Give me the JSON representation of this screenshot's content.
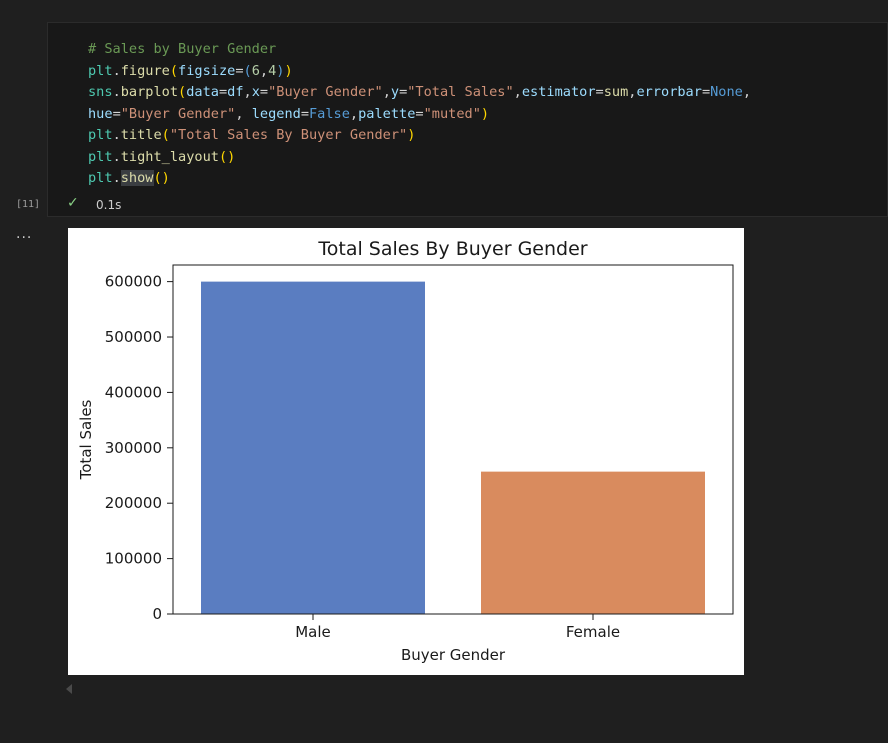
{
  "cell": {
    "execution_count": "[11]",
    "status_icon": "check-icon",
    "status_glyph": "✓",
    "duration": "0.1s",
    "more_glyph": "...",
    "code_lines": [
      [
        {
          "c": "comment",
          "t": "# Sales by Buyer Gender"
        }
      ],
      [
        {
          "c": "ident",
          "t": "plt"
        },
        {
          "c": "op",
          "t": "."
        },
        {
          "c": "func",
          "t": "figure"
        },
        {
          "c": "paren",
          "t": "("
        },
        {
          "c": "param",
          "t": "figsize"
        },
        {
          "c": "op",
          "t": "="
        },
        {
          "c": "paren2",
          "t": "("
        },
        {
          "c": "num",
          "t": "6"
        },
        {
          "c": "op",
          "t": ","
        },
        {
          "c": "num",
          "t": "4"
        },
        {
          "c": "paren2",
          "t": ")"
        },
        {
          "c": "paren",
          "t": ")"
        }
      ],
      [
        {
          "c": "ident",
          "t": "sns"
        },
        {
          "c": "op",
          "t": "."
        },
        {
          "c": "func",
          "t": "barplot"
        },
        {
          "c": "paren",
          "t": "("
        },
        {
          "c": "param",
          "t": "data"
        },
        {
          "c": "op",
          "t": "="
        },
        {
          "c": "param",
          "t": "df"
        },
        {
          "c": "op",
          "t": ","
        },
        {
          "c": "param",
          "t": "x"
        },
        {
          "c": "op",
          "t": "="
        },
        {
          "c": "str",
          "t": "\"Buyer Gender\""
        },
        {
          "c": "op",
          "t": ","
        },
        {
          "c": "param",
          "t": "y"
        },
        {
          "c": "op",
          "t": "="
        },
        {
          "c": "str",
          "t": "\"Total Sales\""
        },
        {
          "c": "op",
          "t": ","
        },
        {
          "c": "param",
          "t": "estimator"
        },
        {
          "c": "op",
          "t": "="
        },
        {
          "c": "func",
          "t": "sum"
        },
        {
          "c": "op",
          "t": ","
        },
        {
          "c": "param",
          "t": "errorbar"
        },
        {
          "c": "op",
          "t": "="
        },
        {
          "c": "kw",
          "t": "None"
        },
        {
          "c": "op",
          "t": ","
        }
      ],
      [
        {
          "c": "param",
          "t": "hue"
        },
        {
          "c": "op",
          "t": "="
        },
        {
          "c": "str",
          "t": "\"Buyer Gender\""
        },
        {
          "c": "op",
          "t": ", "
        },
        {
          "c": "param",
          "t": "legend"
        },
        {
          "c": "op",
          "t": "="
        },
        {
          "c": "kw",
          "t": "False"
        },
        {
          "c": "op",
          "t": ","
        },
        {
          "c": "param",
          "t": "palette"
        },
        {
          "c": "op",
          "t": "="
        },
        {
          "c": "str",
          "t": "\"muted\""
        },
        {
          "c": "paren",
          "t": ")"
        }
      ],
      [
        {
          "c": "ident",
          "t": "plt"
        },
        {
          "c": "op",
          "t": "."
        },
        {
          "c": "func",
          "t": "title"
        },
        {
          "c": "paren",
          "t": "("
        },
        {
          "c": "str",
          "t": "\"Total Sales By Buyer Gender\""
        },
        {
          "c": "paren",
          "t": ")"
        }
      ],
      [
        {
          "c": "ident",
          "t": "plt"
        },
        {
          "c": "op",
          "t": "."
        },
        {
          "c": "func",
          "t": "tight_layout"
        },
        {
          "c": "paren",
          "t": "()"
        }
      ],
      [
        {
          "c": "ident",
          "t": "plt"
        },
        {
          "c": "op",
          "t": "."
        },
        {
          "c": "func-hl",
          "t": "show"
        },
        {
          "c": "paren",
          "t": "()"
        }
      ]
    ]
  },
  "chart_data": {
    "type": "bar",
    "title": "Total Sales By Buyer Gender",
    "xlabel": "Buyer Gender",
    "ylabel": "Total Sales",
    "categories": [
      "Male",
      "Female"
    ],
    "values": [
      600000,
      257000
    ],
    "colors": [
      "#5a7dc1",
      "#d98b5e"
    ],
    "ylim": [
      0,
      630000
    ],
    "yticks": [
      0,
      100000,
      200000,
      300000,
      400000,
      500000,
      600000
    ],
    "ytick_labels": [
      "0",
      "100000",
      "200000",
      "300000",
      "400000",
      "500000",
      "600000"
    ],
    "grid": false,
    "legend": "none"
  },
  "colors": {
    "editor_bg": "#1f1f1f",
    "cell_bg": "#181818",
    "success": "#89d185"
  }
}
